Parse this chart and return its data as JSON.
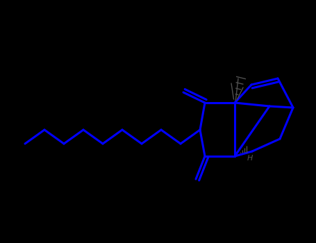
{
  "bg_color": "#000000",
  "line_color": "#0000FF",
  "line_width": 2.2,
  "stereo_color": "#505050",
  "figsize": [
    4.55,
    3.5
  ],
  "dpi": 100,
  "xlim": [
    0,
    455
  ],
  "ylim": [
    0,
    350
  ]
}
